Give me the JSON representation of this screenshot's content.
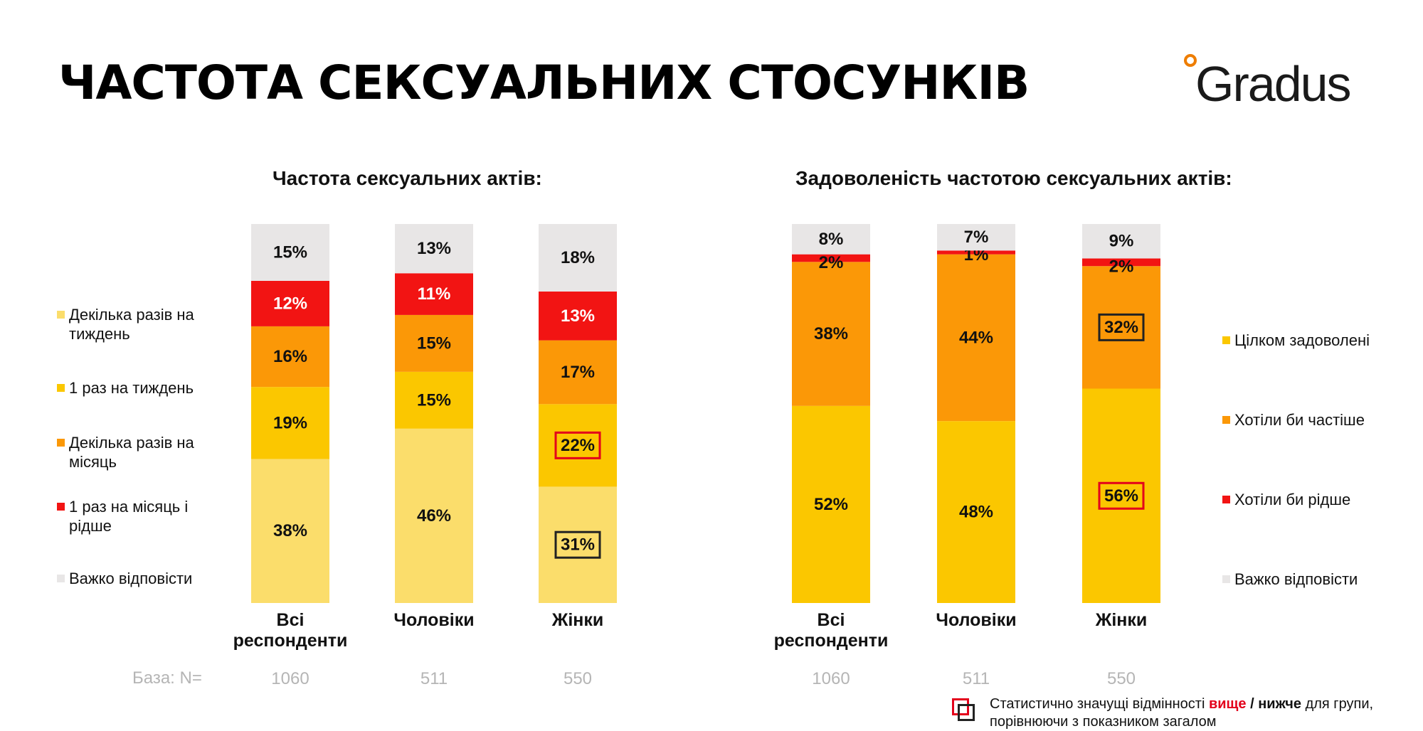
{
  "title": "ЧАСТОТА СЕКСУАЛЬНИХ СТОСУНКІВ",
  "logo": {
    "text": "Gradus",
    "dot_color": "#ee7d00"
  },
  "base_label": "База: N=",
  "categories": [
    "Всі респонденти",
    "Чоловіки",
    "Жінки"
  ],
  "base_values": [
    "1060",
    "511",
    "550"
  ],
  "note": {
    "before": "Статистично значущі відмінності ",
    "higher": "вище",
    "sep": " / ",
    "lower": "нижче",
    "after": " для групи, порівнюючи з показником загалом"
  },
  "colors": {
    "highlight_higher": "#e3001b",
    "highlight_lower": "#222222"
  },
  "chart_data": [
    {
      "type": "bar",
      "stacked": "100%",
      "title": "Частота сексуальних актів:",
      "categories": [
        "Всі респонденти",
        "Чоловіки",
        "Жінки"
      ],
      "series": [
        {
          "name": "Декілька разів на тиждень",
          "legend_lines": [
            "Декілька разів на",
            "тиждень"
          ],
          "color": "#fbdd6b",
          "values": [
            38,
            46,
            31
          ],
          "labels": [
            "38%",
            "46%",
            "31%"
          ],
          "marks": [
            "",
            "",
            "lower"
          ]
        },
        {
          "name": "1 раз на тиждень",
          "legend_lines": [
            "1 раз на тиждень"
          ],
          "color": "#fbc700",
          "values": [
            19,
            15,
            22
          ],
          "labels": [
            "19%",
            "15%",
            "22%"
          ],
          "marks": [
            "",
            "",
            "higher"
          ]
        },
        {
          "name": "Декілька разів на місяць",
          "legend_lines": [
            "Декілька разів на",
            "місяць"
          ],
          "color": "#fb9807",
          "values": [
            16,
            15,
            17
          ],
          "labels": [
            "16%",
            "15%",
            "17%"
          ],
          "marks": [
            "",
            "",
            ""
          ]
        },
        {
          "name": "1 раз на місяць і рідше",
          "legend_lines": [
            "1 раз на місяць і",
            "рідше"
          ],
          "color": "#f21413",
          "values": [
            12,
            11,
            13
          ],
          "labels": [
            "12%",
            "11%",
            "13%"
          ],
          "marks": [
            "",
            "",
            ""
          ]
        },
        {
          "name": "Важко відповісти",
          "legend_lines": [
            "Важко відповісти"
          ],
          "color": "#e8e6e6",
          "values": [
            15,
            13,
            18
          ],
          "labels": [
            "15%",
            "13%",
            "18%"
          ],
          "marks": [
            "",
            "",
            ""
          ]
        }
      ]
    },
    {
      "type": "bar",
      "stacked": "100%",
      "title": "Задоволеність частотою сексуальних актів:",
      "categories": [
        "Всі респонденти",
        "Чоловіки",
        "Жінки"
      ],
      "series": [
        {
          "name": "Цілком задоволені",
          "legend_lines": [
            "Цілком задоволені"
          ],
          "color": "#fbc700",
          "values": [
            52,
            48,
            56
          ],
          "labels": [
            "52%",
            "48%",
            "56%"
          ],
          "marks": [
            "",
            "",
            "higher"
          ]
        },
        {
          "name": "Хотіли би частіше",
          "legend_lines": [
            "Хотіли би частіше"
          ],
          "color": "#fb9807",
          "values": [
            38,
            44,
            32
          ],
          "labels": [
            "38%",
            "44%",
            "32%"
          ],
          "marks": [
            "",
            "",
            "lower"
          ]
        },
        {
          "name": "Хотіли би рідше",
          "legend_lines": [
            "Хотіли би рідше"
          ],
          "color": "#f21413",
          "values": [
            2,
            1,
            2
          ],
          "labels": [
            "2%",
            "1%",
            "2%"
          ],
          "marks": [
            "",
            "",
            ""
          ]
        },
        {
          "name": "Важко відповісти",
          "legend_lines": [
            "Важко відповісти"
          ],
          "color": "#e8e6e6",
          "values": [
            8,
            7,
            9
          ],
          "labels": [
            "8%",
            "7%",
            "9%"
          ],
          "marks": [
            "",
            "",
            ""
          ]
        }
      ]
    }
  ]
}
